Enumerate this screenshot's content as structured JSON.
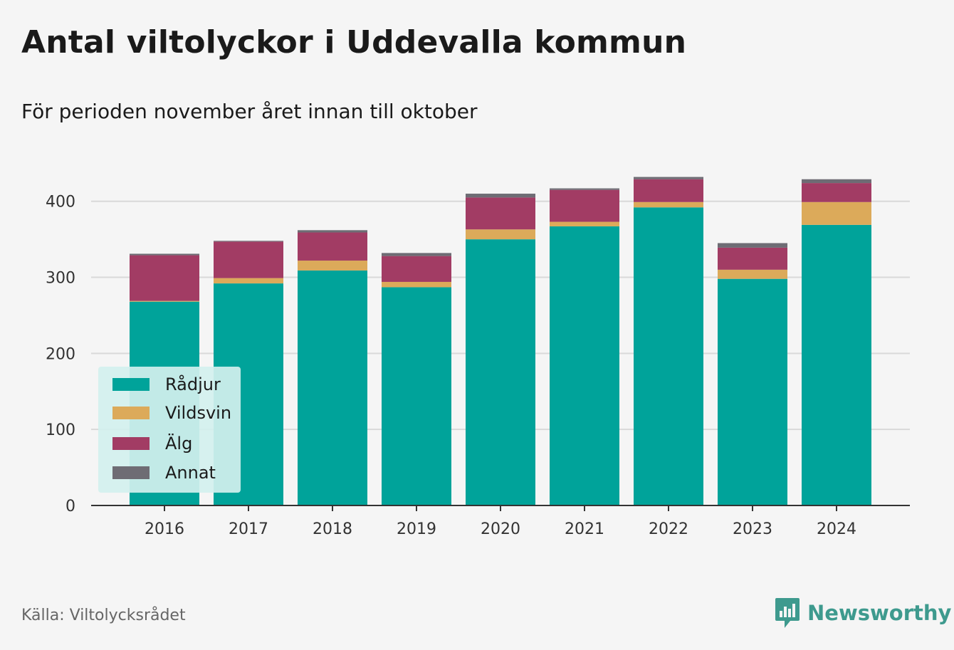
{
  "title": "Antal viltolyckor i Uddevalla kommun",
  "subtitle": "För perioden november året innan till oktober",
  "source": "Källa: Viltolycksrådet",
  "brand": {
    "name": "Newsworthy",
    "icon": "newsworthy-logo-icon",
    "color": "#3e9a8e"
  },
  "chart_data": {
    "type": "bar",
    "stacked": true,
    "categories": [
      "2016",
      "2017",
      "2018",
      "2019",
      "2020",
      "2021",
      "2022",
      "2023",
      "2024"
    ],
    "series": [
      {
        "name": "Rådjur",
        "color": "#00a39a",
        "values": [
          268,
          292,
          309,
          287,
          350,
          367,
          392,
          298,
          369
        ]
      },
      {
        "name": "Vildsvin",
        "color": "#dcaa5a",
        "values": [
          1,
          7,
          13,
          7,
          13,
          6,
          7,
          12,
          30
        ]
      },
      {
        "name": "Älg",
        "color": "#a23c64",
        "values": [
          60,
          48,
          37,
          34,
          42,
          42,
          30,
          29,
          25
        ]
      },
      {
        "name": "Annat",
        "color": "#6e6c74",
        "values": [
          2,
          1,
          3,
          4,
          5,
          2,
          3,
          6,
          5
        ]
      }
    ],
    "yticks": [
      0,
      100,
      200,
      300,
      400
    ],
    "ylim": [
      0,
      440
    ],
    "grid": true,
    "legend": "bottom-left",
    "xlabel": "",
    "ylabel": ""
  }
}
